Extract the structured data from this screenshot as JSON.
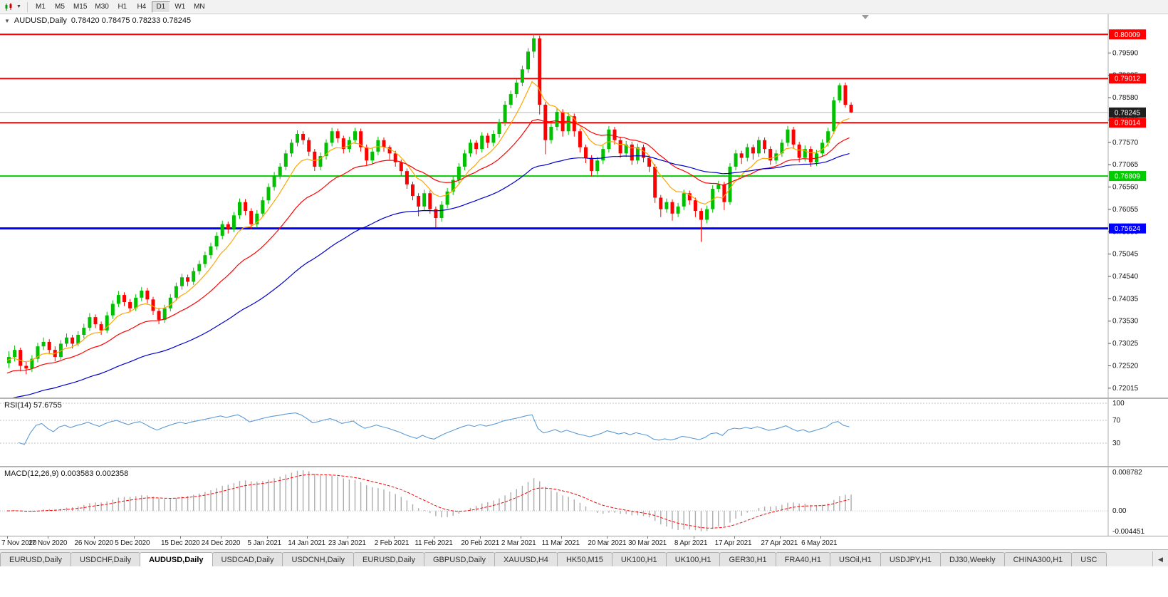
{
  "toolbar": {
    "timeframes": [
      "M1",
      "M5",
      "M15",
      "M30",
      "H1",
      "H4",
      "D1",
      "W1",
      "MN"
    ],
    "active_timeframe": "D1"
  },
  "icons": {
    "timeframe_caret": "▼",
    "collapse_marker": "▼",
    "tab_scroll_left": "◀"
  },
  "chart_window": {
    "title_symbol": "AUDUSD,Daily",
    "title_ohlc": "0.78420 0.78475 0.78233 0.78245"
  },
  "chart_data": {
    "type": "candlestick",
    "symbol": "AUDUSD",
    "timeframe": "Daily",
    "up_color": "#00C000",
    "down_color": "#FF0000",
    "y_range": [
      0.719,
      0.804
    ],
    "y_ticks": [
      "0.79590",
      "0.79085",
      "0.78580",
      "0.78075",
      "0.77570",
      "0.77065",
      "0.76560",
      "0.76055",
      "0.75550",
      "0.75045",
      "0.74540",
      "0.74035",
      "0.73530",
      "0.73025",
      "0.72520",
      "0.72015"
    ],
    "x_labels": [
      "7 Nov 2020",
      "17 Nov 2020",
      "26 Nov 2020",
      "5 Dec 2020",
      "15 Dec 2020",
      "24 Dec 2020",
      "5 Jan 2021",
      "14 Jan 2021",
      "23 Jan 2021",
      "2 Feb 2021",
      "11 Feb 2021",
      "20 Feb 2021",
      "2 Mar 2021",
      "11 Mar 2021",
      "20 Mar 2021",
      "30 Mar 2021",
      "8 Apr 2021",
      "17 Apr 2021",
      "27 Apr 2021",
      "6 May 2021"
    ],
    "hlines": [
      {
        "price": 0.80009,
        "label": "0.80009",
        "color": "#FF0000",
        "width": 2
      },
      {
        "price": 0.79012,
        "label": "0.79012",
        "color": "#FF0000",
        "width": 2
      },
      {
        "price": 0.78014,
        "label": "0.78014",
        "color": "#FF0000",
        "width": 2
      },
      {
        "price": 0.76809,
        "label": "0.76809",
        "color": "#00CC00",
        "width": 2
      },
      {
        "price": 0.75624,
        "label": "0.75624",
        "color": "#0000FF",
        "width": 3
      }
    ],
    "current_price": {
      "price": 0.78245,
      "label": "0.78245",
      "box_color": "#1f1f1f"
    },
    "moving_averages": [
      {
        "type": "ema",
        "period": 8,
        "color": "#FFA500"
      },
      {
        "type": "ema",
        "period": 21,
        "color": "#FF0000"
      },
      {
        "type": "ema",
        "period": 55,
        "color": "#0000CC"
      }
    ],
    "candles": [
      [
        0.7258,
        0.7285,
        0.7247,
        0.7272
      ],
      [
        0.7272,
        0.7298,
        0.7262,
        0.7288
      ],
      [
        0.7288,
        0.7293,
        0.724,
        0.7252
      ],
      [
        0.7252,
        0.7262,
        0.7233,
        0.7246
      ],
      [
        0.7246,
        0.7276,
        0.7238,
        0.7268
      ],
      [
        0.7268,
        0.7304,
        0.726,
        0.7296
      ],
      [
        0.7296,
        0.7316,
        0.7288,
        0.7306
      ],
      [
        0.7306,
        0.7312,
        0.7278,
        0.7288
      ],
      [
        0.7288,
        0.7296,
        0.7262,
        0.7272
      ],
      [
        0.7272,
        0.731,
        0.7266,
        0.7302
      ],
      [
        0.7302,
        0.7325,
        0.7295,
        0.7316
      ],
      [
        0.7316,
        0.7322,
        0.7291,
        0.7302
      ],
      [
        0.7302,
        0.733,
        0.7296,
        0.7322
      ],
      [
        0.7322,
        0.7347,
        0.7314,
        0.7338
      ],
      [
        0.7338,
        0.7371,
        0.7331,
        0.7362
      ],
      [
        0.7362,
        0.7368,
        0.7337,
        0.7346
      ],
      [
        0.7346,
        0.7352,
        0.7322,
        0.7332
      ],
      [
        0.7332,
        0.7374,
        0.7326,
        0.7366
      ],
      [
        0.7366,
        0.74,
        0.7358,
        0.7392
      ],
      [
        0.7392,
        0.7421,
        0.7385,
        0.7412
      ],
      [
        0.7412,
        0.7418,
        0.7387,
        0.7396
      ],
      [
        0.7396,
        0.7403,
        0.7373,
        0.7382
      ],
      [
        0.7382,
        0.7414,
        0.7376,
        0.7406
      ],
      [
        0.7406,
        0.743,
        0.7398,
        0.7422
      ],
      [
        0.7422,
        0.7428,
        0.7393,
        0.7402
      ],
      [
        0.7402,
        0.7408,
        0.7367,
        0.7376
      ],
      [
        0.7376,
        0.7383,
        0.7346,
        0.7356
      ],
      [
        0.7356,
        0.739,
        0.7349,
        0.7382
      ],
      [
        0.7382,
        0.7414,
        0.7375,
        0.7406
      ],
      [
        0.7406,
        0.744,
        0.7399,
        0.7432
      ],
      [
        0.7432,
        0.746,
        0.7424,
        0.7452
      ],
      [
        0.7452,
        0.7458,
        0.7432,
        0.7442
      ],
      [
        0.7442,
        0.7474,
        0.7435,
        0.7466
      ],
      [
        0.7466,
        0.749,
        0.7458,
        0.7482
      ],
      [
        0.7482,
        0.751,
        0.7474,
        0.7502
      ],
      [
        0.7502,
        0.753,
        0.7494,
        0.7522
      ],
      [
        0.7522,
        0.7554,
        0.7514,
        0.7546
      ],
      [
        0.7546,
        0.758,
        0.7538,
        0.7572
      ],
      [
        0.7572,
        0.7578,
        0.7551,
        0.7562
      ],
      [
        0.7562,
        0.76,
        0.7554,
        0.7592
      ],
      [
        0.7592,
        0.763,
        0.7584,
        0.7622
      ],
      [
        0.7622,
        0.7629,
        0.7592,
        0.7602
      ],
      [
        0.7602,
        0.7608,
        0.7561,
        0.7572
      ],
      [
        0.7572,
        0.7604,
        0.7564,
        0.7596
      ],
      [
        0.7596,
        0.7634,
        0.7588,
        0.7626
      ],
      [
        0.7626,
        0.7664,
        0.7618,
        0.7656
      ],
      [
        0.7656,
        0.769,
        0.7648,
        0.7682
      ],
      [
        0.7682,
        0.771,
        0.7674,
        0.7702
      ],
      [
        0.7702,
        0.774,
        0.7694,
        0.7732
      ],
      [
        0.7732,
        0.7764,
        0.7724,
        0.7756
      ],
      [
        0.7756,
        0.7784,
        0.7748,
        0.7776
      ],
      [
        0.7776,
        0.7782,
        0.7752,
        0.7762
      ],
      [
        0.7762,
        0.7768,
        0.7726,
        0.7736
      ],
      [
        0.7736,
        0.7742,
        0.7692,
        0.7702
      ],
      [
        0.7702,
        0.7734,
        0.7694,
        0.7726
      ],
      [
        0.7726,
        0.7764,
        0.7718,
        0.7756
      ],
      [
        0.7756,
        0.779,
        0.7748,
        0.7782
      ],
      [
        0.7782,
        0.7788,
        0.7756,
        0.7766
      ],
      [
        0.7766,
        0.7772,
        0.7732,
        0.7742
      ],
      [
        0.7742,
        0.777,
        0.7734,
        0.7762
      ],
      [
        0.7762,
        0.779,
        0.7754,
        0.7782
      ],
      [
        0.7782,
        0.7788,
        0.7736,
        0.7746
      ],
      [
        0.7746,
        0.7752,
        0.7706,
        0.7716
      ],
      [
        0.7716,
        0.7744,
        0.7708,
        0.7736
      ],
      [
        0.7736,
        0.777,
        0.7728,
        0.7762
      ],
      [
        0.7762,
        0.7768,
        0.7736,
        0.7746
      ],
      [
        0.7746,
        0.775,
        0.7718,
        0.7732
      ],
      [
        0.7732,
        0.7738,
        0.7702,
        0.7712
      ],
      [
        0.7712,
        0.7718,
        0.7682,
        0.7692
      ],
      [
        0.7692,
        0.7698,
        0.7652,
        0.7662
      ],
      [
        0.7662,
        0.7668,
        0.7626,
        0.7636
      ],
      [
        0.7636,
        0.7642,
        0.759,
        0.7612
      ],
      [
        0.7612,
        0.765,
        0.7604,
        0.7642
      ],
      [
        0.7642,
        0.7648,
        0.7596,
        0.7606
      ],
      [
        0.7606,
        0.7612,
        0.7564,
        0.7586
      ],
      [
        0.7586,
        0.7624,
        0.7578,
        0.7616
      ],
      [
        0.7616,
        0.7654,
        0.7608,
        0.7646
      ],
      [
        0.7646,
        0.768,
        0.7638,
        0.7672
      ],
      [
        0.7672,
        0.771,
        0.7664,
        0.7702
      ],
      [
        0.7702,
        0.774,
        0.7694,
        0.7732
      ],
      [
        0.7732,
        0.7764,
        0.7724,
        0.7756
      ],
      [
        0.7756,
        0.7762,
        0.773,
        0.7742
      ],
      [
        0.7742,
        0.778,
        0.7734,
        0.7772
      ],
      [
        0.7772,
        0.7778,
        0.7744,
        0.7756
      ],
      [
        0.7756,
        0.7784,
        0.7748,
        0.7776
      ],
      [
        0.7776,
        0.781,
        0.7768,
        0.7802
      ],
      [
        0.7802,
        0.785,
        0.7794,
        0.7842
      ],
      [
        0.7842,
        0.7874,
        0.7834,
        0.7866
      ],
      [
        0.7866,
        0.79,
        0.7858,
        0.7892
      ],
      [
        0.7892,
        0.793,
        0.7884,
        0.7922
      ],
      [
        0.7922,
        0.797,
        0.7914,
        0.7962
      ],
      [
        0.7962,
        0.8001,
        0.7948,
        0.7992
      ],
      [
        0.7992,
        0.7998,
        0.782,
        0.7842
      ],
      [
        0.7842,
        0.7848,
        0.773,
        0.7762
      ],
      [
        0.7762,
        0.78,
        0.7754,
        0.7792
      ],
      [
        0.7792,
        0.7834,
        0.7784,
        0.7826
      ],
      [
        0.7826,
        0.7832,
        0.777,
        0.7782
      ],
      [
        0.7782,
        0.7824,
        0.7774,
        0.7816
      ],
      [
        0.7816,
        0.7822,
        0.777,
        0.7782
      ],
      [
        0.7782,
        0.7788,
        0.7734,
        0.7746
      ],
      [
        0.7746,
        0.7752,
        0.771,
        0.7722
      ],
      [
        0.7722,
        0.7728,
        0.768,
        0.7692
      ],
      [
        0.7692,
        0.7724,
        0.7684,
        0.7716
      ],
      [
        0.7716,
        0.775,
        0.7708,
        0.7742
      ],
      [
        0.7742,
        0.7794,
        0.7734,
        0.7786
      ],
      [
        0.7786,
        0.7792,
        0.7752,
        0.7762
      ],
      [
        0.7762,
        0.7768,
        0.7722,
        0.7732
      ],
      [
        0.7732,
        0.776,
        0.7724,
        0.7752
      ],
      [
        0.7752,
        0.7758,
        0.7706,
        0.7716
      ],
      [
        0.7716,
        0.7754,
        0.7708,
        0.7746
      ],
      [
        0.7746,
        0.7752,
        0.7712,
        0.7722
      ],
      [
        0.7722,
        0.7728,
        0.769,
        0.7702
      ],
      [
        0.7702,
        0.7708,
        0.762,
        0.7632
      ],
      [
        0.7632,
        0.7638,
        0.7588,
        0.7606
      ],
      [
        0.7606,
        0.763,
        0.7598,
        0.7622
      ],
      [
        0.7622,
        0.7628,
        0.758,
        0.7596
      ],
      [
        0.7596,
        0.762,
        0.7588,
        0.7612
      ],
      [
        0.7612,
        0.765,
        0.7604,
        0.7642
      ],
      [
        0.7642,
        0.7648,
        0.7616,
        0.7626
      ],
      [
        0.7626,
        0.7632,
        0.7588,
        0.7602
      ],
      [
        0.7602,
        0.7608,
        0.7532,
        0.7582
      ],
      [
        0.7582,
        0.7614,
        0.7574,
        0.7606
      ],
      [
        0.7606,
        0.766,
        0.7598,
        0.7652
      ],
      [
        0.7652,
        0.767,
        0.7644,
        0.7662
      ],
      [
        0.7662,
        0.7668,
        0.7604,
        0.7622
      ],
      [
        0.7622,
        0.771,
        0.7616,
        0.7702
      ],
      [
        0.7702,
        0.774,
        0.7694,
        0.7732
      ],
      [
        0.7732,
        0.7738,
        0.7708,
        0.7722
      ],
      [
        0.7722,
        0.7754,
        0.7714,
        0.7746
      ],
      [
        0.7746,
        0.7752,
        0.7718,
        0.7732
      ],
      [
        0.7732,
        0.777,
        0.7724,
        0.7762
      ],
      [
        0.7762,
        0.7768,
        0.7732,
        0.7742
      ],
      [
        0.7742,
        0.7748,
        0.7706,
        0.7716
      ],
      [
        0.7716,
        0.774,
        0.7708,
        0.7732
      ],
      [
        0.7732,
        0.7764,
        0.7724,
        0.7756
      ],
      [
        0.7756,
        0.7794,
        0.7748,
        0.7786
      ],
      [
        0.7786,
        0.7792,
        0.7744,
        0.7752
      ],
      [
        0.7752,
        0.7758,
        0.7712,
        0.7722
      ],
      [
        0.7722,
        0.775,
        0.7714,
        0.7742
      ],
      [
        0.7742,
        0.7748,
        0.7702,
        0.7712
      ],
      [
        0.7712,
        0.774,
        0.7704,
        0.7732
      ],
      [
        0.7732,
        0.7764,
        0.7724,
        0.7756
      ],
      [
        0.7756,
        0.779,
        0.7748,
        0.7782
      ],
      [
        0.7782,
        0.786,
        0.7776,
        0.7852
      ],
      [
        0.7852,
        0.7891,
        0.7846,
        0.7886
      ],
      [
        0.7886,
        0.7892,
        0.7836,
        0.7842
      ],
      [
        0.7842,
        0.78475,
        0.78233,
        0.78245
      ]
    ]
  },
  "rsi_panel": {
    "label": "RSI(14) 57.6755",
    "period": 14,
    "value": 57.6755,
    "levels": [
      "100",
      "70",
      "30"
    ],
    "line_color": "#5B9BD5"
  },
  "macd_panel": {
    "label": "MACD(12,26,9) 0.003583 0.002358",
    "fast": 12,
    "slow": 26,
    "signal": 9,
    "value": 0.003583,
    "signal_value": 0.002358,
    "y_labels": [
      "0.008782",
      "0.00",
      "-0.004451"
    ],
    "histogram_color": "#ADADAD",
    "signal_color": "#FF0000"
  },
  "tabs": {
    "items": [
      "EURUSD,Daily",
      "USDCHF,Daily",
      "AUDUSD,Daily",
      "USDCAD,Daily",
      "USDCNH,Daily",
      "EURUSD,Daily",
      "GBPUSD,Daily",
      "XAUUSD,H4",
      "HK50,M15",
      "UK100,H1",
      "UK100,H1",
      "GER30,H1",
      "FRA40,H1",
      "USOil,H1",
      "USDJPY,H1",
      "DJ30,Weekly",
      "CHINA300,H1",
      "USC"
    ],
    "active_index": 2
  }
}
